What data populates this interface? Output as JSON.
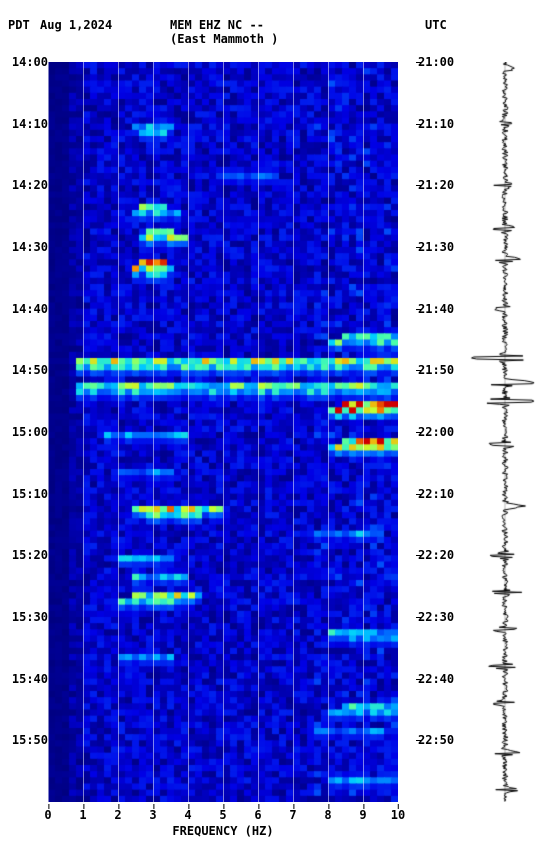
{
  "header": {
    "tz_left": "PDT",
    "date": "Aug 1,2024",
    "station": "MEM EHZ NC --",
    "location": "(East Mammoth )",
    "tz_right": "UTC"
  },
  "spectrogram": {
    "type": "spectrogram",
    "x_axis": {
      "label": "FREQUENCY (HZ)",
      "min": 0,
      "max": 10,
      "ticks": [
        0,
        1,
        2,
        3,
        4,
        5,
        6,
        7,
        8,
        9,
        10
      ]
    },
    "y_axis_left": {
      "label_tz": "PDT",
      "ticks": [
        "14:00",
        "14:10",
        "14:20",
        "14:30",
        "14:40",
        "14:50",
        "15:00",
        "15:10",
        "15:20",
        "15:30",
        "15:40",
        "15:50"
      ]
    },
    "y_axis_right": {
      "label_tz": "UTC",
      "ticks": [
        "21:00",
        "21:10",
        "21:20",
        "21:30",
        "21:40",
        "21:50",
        "22:00",
        "22:10",
        "22:20",
        "22:30",
        "22:40",
        "22:50"
      ]
    },
    "time_rows": 120,
    "freq_cols": 50,
    "colormap": {
      "name": "jet-like",
      "stops": [
        {
          "v": 0.0,
          "c": "#00007f"
        },
        {
          "v": 0.15,
          "c": "#0000e6"
        },
        {
          "v": 0.35,
          "c": "#0060ff"
        },
        {
          "v": 0.5,
          "c": "#00d0ff"
        },
        {
          "v": 0.62,
          "c": "#4dffaa"
        },
        {
          "v": 0.75,
          "c": "#c8ff30"
        },
        {
          "v": 0.87,
          "c": "#ff9a00"
        },
        {
          "v": 1.0,
          "c": "#d00000"
        }
      ]
    },
    "background_level": 0.12,
    "noise_amplitude": 0.1,
    "low_freq_quiet_cols": 3,
    "events": [
      {
        "row": 10,
        "f_lo": 12,
        "f_hi": 18,
        "intensity": 0.55
      },
      {
        "row": 11,
        "f_lo": 13,
        "f_hi": 17,
        "intensity": 0.45
      },
      {
        "row": 18,
        "f_lo": 24,
        "f_hi": 33,
        "intensity": 0.35
      },
      {
        "row": 23,
        "f_lo": 13,
        "f_hi": 17,
        "intensity": 0.6
      },
      {
        "row": 24,
        "f_lo": 12,
        "f_hi": 19,
        "intensity": 0.5
      },
      {
        "row": 27,
        "f_lo": 14,
        "f_hi": 18,
        "intensity": 0.85
      },
      {
        "row": 28,
        "f_lo": 13,
        "f_hi": 20,
        "intensity": 0.7
      },
      {
        "row": 32,
        "f_lo": 13,
        "f_hi": 17,
        "intensity": 0.9
      },
      {
        "row": 33,
        "f_lo": 12,
        "f_hi": 18,
        "intensity": 0.75
      },
      {
        "row": 34,
        "f_lo": 14,
        "f_hi": 17,
        "intensity": 0.6
      },
      {
        "row": 44,
        "f_lo": 42,
        "f_hi": 50,
        "intensity": 0.55
      },
      {
        "row": 45,
        "f_lo": 40,
        "f_hi": 50,
        "intensity": 0.6
      },
      {
        "row": 48,
        "f_lo": 4,
        "f_hi": 50,
        "intensity": 0.7
      },
      {
        "row": 49,
        "f_lo": 4,
        "f_hi": 50,
        "intensity": 0.55
      },
      {
        "row": 52,
        "f_lo": 4,
        "f_hi": 50,
        "intensity": 0.65
      },
      {
        "row": 53,
        "f_lo": 4,
        "f_hi": 50,
        "intensity": 0.5
      },
      {
        "row": 55,
        "f_lo": 42,
        "f_hi": 50,
        "intensity": 0.95
      },
      {
        "row": 56,
        "f_lo": 40,
        "f_hi": 50,
        "intensity": 0.85
      },
      {
        "row": 60,
        "f_lo": 8,
        "f_hi": 20,
        "intensity": 0.45
      },
      {
        "row": 61,
        "f_lo": 42,
        "f_hi": 50,
        "intensity": 0.88
      },
      {
        "row": 62,
        "f_lo": 40,
        "f_hi": 50,
        "intensity": 0.7
      },
      {
        "row": 66,
        "f_lo": 10,
        "f_hi": 18,
        "intensity": 0.4
      },
      {
        "row": 72,
        "f_lo": 12,
        "f_hi": 25,
        "intensity": 0.8
      },
      {
        "row": 73,
        "f_lo": 14,
        "f_hi": 22,
        "intensity": 0.6
      },
      {
        "row": 76,
        "f_lo": 38,
        "f_hi": 48,
        "intensity": 0.45
      },
      {
        "row": 80,
        "f_lo": 10,
        "f_hi": 18,
        "intensity": 0.45
      },
      {
        "row": 83,
        "f_lo": 12,
        "f_hi": 20,
        "intensity": 0.5
      },
      {
        "row": 86,
        "f_lo": 12,
        "f_hi": 22,
        "intensity": 0.7
      },
      {
        "row": 87,
        "f_lo": 10,
        "f_hi": 20,
        "intensity": 0.55
      },
      {
        "row": 92,
        "f_lo": 40,
        "f_hi": 50,
        "intensity": 0.5
      },
      {
        "row": 93,
        "f_lo": 40,
        "f_hi": 50,
        "intensity": 0.4
      },
      {
        "row": 96,
        "f_lo": 10,
        "f_hi": 18,
        "intensity": 0.4
      },
      {
        "row": 104,
        "f_lo": 42,
        "f_hi": 50,
        "intensity": 0.55
      },
      {
        "row": 105,
        "f_lo": 40,
        "f_hi": 50,
        "intensity": 0.45
      },
      {
        "row": 108,
        "f_lo": 38,
        "f_hi": 48,
        "intensity": 0.4
      },
      {
        "row": 116,
        "f_lo": 40,
        "f_hi": 50,
        "intensity": 0.45
      }
    ]
  },
  "waveform": {
    "color": "#000000",
    "baseline_noise": 3,
    "spikes": [
      {
        "row": 1,
        "amp": 10
      },
      {
        "row": 10,
        "amp": 8
      },
      {
        "row": 20,
        "amp": 10
      },
      {
        "row": 27,
        "amp": 12
      },
      {
        "row": 32,
        "amp": 14
      },
      {
        "row": 40,
        "amp": 10
      },
      {
        "row": 48,
        "amp": 34
      },
      {
        "row": 52,
        "amp": 32
      },
      {
        "row": 55,
        "amp": 30
      },
      {
        "row": 62,
        "amp": 16
      },
      {
        "row": 72,
        "amp": 18
      },
      {
        "row": 80,
        "amp": 12
      },
      {
        "row": 86,
        "amp": 14
      },
      {
        "row": 92,
        "amp": 12
      },
      {
        "row": 98,
        "amp": 14
      },
      {
        "row": 104,
        "amp": 12
      },
      {
        "row": 112,
        "amp": 14
      },
      {
        "row": 118,
        "amp": 12
      }
    ]
  }
}
